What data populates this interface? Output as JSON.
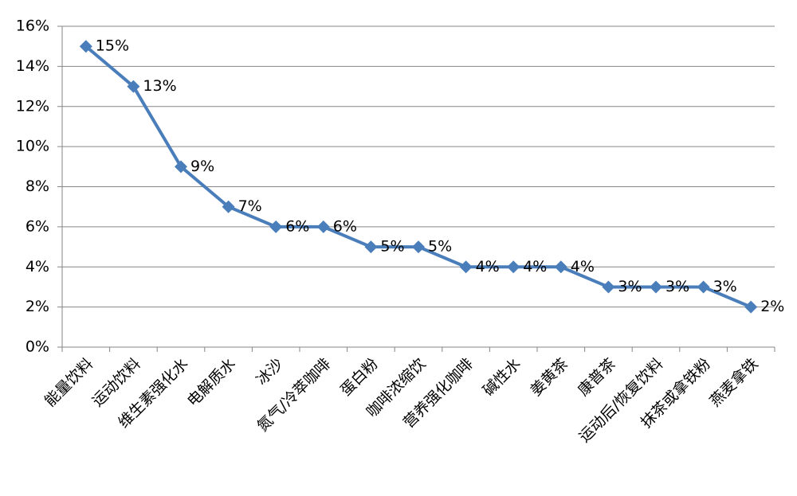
{
  "chart_data": {
    "type": "line",
    "categories": [
      "能量饮料",
      "运动饮料",
      "维生素强化水",
      "电解质水",
      "冰沙",
      "氮气/冷萃咖啡",
      "蛋白粉",
      "咖啡浓缩饮",
      "营养强化咖啡",
      "碱性水",
      "姜黄茶",
      "康普茶",
      "运动后/恢复饮料",
      "抹茶或拿铁粉",
      "燕麦拿铁"
    ],
    "values": [
      15,
      13,
      9,
      7,
      6,
      6,
      5,
      5,
      4,
      4,
      4,
      3,
      3,
      3,
      2
    ],
    "value_labels": [
      "15%",
      "13%",
      "9%",
      "7%",
      "6%",
      "6%",
      "5%",
      "5%",
      "4%",
      "4%",
      "4%",
      "3%",
      "3%",
      "3%",
      "2%"
    ],
    "color": "#4a7ebb",
    "ylim": [
      0,
      16
    ],
    "yticks": [
      {
        "value": 0,
        "label": "0%"
      },
      {
        "value": 2,
        "label": "2%"
      },
      {
        "value": 4,
        "label": "4%"
      },
      {
        "value": 6,
        "label": "6%"
      },
      {
        "value": 8,
        "label": "8%"
      },
      {
        "value": 10,
        "label": "10%"
      },
      {
        "value": 12,
        "label": "12%"
      },
      {
        "value": 14,
        "label": "14%"
      },
      {
        "value": 16,
        "label": "16%"
      }
    ],
    "grid": true
  }
}
